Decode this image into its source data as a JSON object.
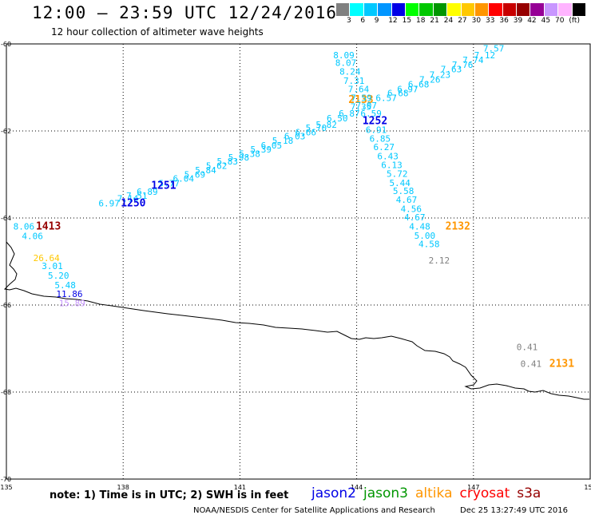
{
  "header": {
    "title": "12:00 – 23:59 UTC 12/24/2016",
    "subtitle": "12 hour collection of altimeter wave heights"
  },
  "color_scale": {
    "colors": [
      "#808080",
      "#00ffff",
      "#00c8ff",
      "#0096ff",
      "#0000e6",
      "#00ff00",
      "#00c800",
      "#009600",
      "#ffff00",
      "#ffc800",
      "#ff9600",
      "#ff0000",
      "#c80000",
      "#960000",
      "#960096",
      "#c896ff",
      "#ffb4ff",
      "#000000"
    ],
    "labels": [
      "3",
      "6",
      "9",
      "12",
      "15",
      "18",
      "21",
      "24",
      "27",
      "30",
      "33",
      "36",
      "39",
      "42",
      "45",
      "70",
      "(ft)"
    ]
  },
  "map": {
    "lon_ticks": [
      "135",
      "138",
      "141",
      "144",
      "147",
      "150"
    ],
    "lat_ticks": [
      "-60",
      "-62",
      "-64",
      "-66",
      "-68",
      "-70"
    ],
    "ticks": [
      {
        "lon": 147.52,
        "lat": -60.1,
        "text": "7.57",
        "color": "#00c8ff"
      },
      {
        "lon": 147.29,
        "lat": -60.26,
        "text": "7.12",
        "color": "#00c8ff"
      },
      {
        "lon": 146.99,
        "lat": -60.37,
        "text": "7.74",
        "color": "#00c8ff"
      },
      {
        "lon": 146.72,
        "lat": -60.48,
        "text": "7.76",
        "color": "#00c8ff"
      },
      {
        "lon": 146.43,
        "lat": -60.58,
        "text": "7.63",
        "color": "#00c8ff"
      },
      {
        "lon": 146.14,
        "lat": -60.71,
        "text": "7.23",
        "color": "#00c8ff"
      },
      {
        "lon": 145.88,
        "lat": -60.82,
        "text": "7.26",
        "color": "#00c8ff"
      },
      {
        "lon": 145.59,
        "lat": -60.93,
        "text": "6.68",
        "color": "#00c8ff"
      },
      {
        "lon": 145.31,
        "lat": -61.04,
        "text": "6.97",
        "color": "#00c8ff"
      },
      {
        "lon": 145.06,
        "lat": -61.13,
        "text": "6.68",
        "color": "#00c8ff"
      },
      {
        "lon": 144.76,
        "lat": -61.24,
        "text": "6.57",
        "color": "#00c8ff"
      },
      {
        "lon": 144.11,
        "lat": -61.28,
        "text": "2133",
        "color": "#ff9600",
        "bold": true
      },
      {
        "lon": 144.11,
        "lat": -61.44,
        "text": "7.35",
        "color": "#00c8ff"
      },
      {
        "lon": 143.81,
        "lat": -61.6,
        "text": "6.87",
        "color": "#00c8ff"
      },
      {
        "lon": 143.5,
        "lat": -61.71,
        "text": "6.50",
        "color": "#00c8ff"
      },
      {
        "lon": 143.22,
        "lat": -61.85,
        "text": "5.82",
        "color": "#00c8ff"
      },
      {
        "lon": 142.96,
        "lat": -61.93,
        "text": "5.70",
        "color": "#00c8ff"
      },
      {
        "lon": 142.69,
        "lat": -62.03,
        "text": "6.66",
        "color": "#00c8ff"
      },
      {
        "lon": 142.41,
        "lat": -62.12,
        "text": "6.03",
        "color": "#00c8ff"
      },
      {
        "lon": 142.1,
        "lat": -62.22,
        "text": "5.18",
        "color": "#00c8ff"
      },
      {
        "lon": 141.81,
        "lat": -62.33,
        "text": "6.05",
        "color": "#00c8ff"
      },
      {
        "lon": 141.54,
        "lat": -62.42,
        "text": "5.39",
        "color": "#00c8ff"
      },
      {
        "lon": 141.25,
        "lat": -62.52,
        "text": "5.38",
        "color": "#00c8ff"
      },
      {
        "lon": 140.97,
        "lat": -62.61,
        "text": "5.98",
        "color": "#00c8ff"
      },
      {
        "lon": 140.68,
        "lat": -62.7,
        "text": "5.83",
        "color": "#00c8ff"
      },
      {
        "lon": 140.4,
        "lat": -62.8,
        "text": "5.62",
        "color": "#00c8ff"
      },
      {
        "lon": 140.12,
        "lat": -62.9,
        "text": "5.84",
        "color": "#00c8ff"
      },
      {
        "lon": 139.84,
        "lat": -63.0,
        "text": "5.69",
        "color": "#00c8ff"
      },
      {
        "lon": 139.55,
        "lat": -63.09,
        "text": "6.04",
        "color": "#00c8ff"
      },
      {
        "lon": 139.18,
        "lat": -63.2,
        "text": "5.77",
        "color": "#00c8ff"
      },
      {
        "lon": 139.04,
        "lat": -63.26,
        "text": "1251",
        "color": "#0000e6",
        "bold": true
      },
      {
        "lon": 138.62,
        "lat": -63.39,
        "text": "6.89",
        "color": "#00c8ff"
      },
      {
        "lon": 138.35,
        "lat": -63.49,
        "text": "7.51",
        "color": "#00c8ff"
      },
      {
        "lon": 138.12,
        "lat": -63.55,
        "text": "7.14",
        "color": "#00c8ff"
      },
      {
        "lon": 137.64,
        "lat": -63.66,
        "text": "6.97",
        "color": "#00c8ff"
      },
      {
        "lon": 138.26,
        "lat": -63.66,
        "text": "1250",
        "color": "#0000e6",
        "bold": true
      },
      {
        "lon": 143.67,
        "lat": -60.26,
        "text": "8.09",
        "color": "#00c8ff"
      },
      {
        "lon": 143.72,
        "lat": -60.43,
        "text": "8.07",
        "color": "#00c8ff"
      },
      {
        "lon": 143.83,
        "lat": -60.63,
        "text": "8.24",
        "color": "#00c8ff"
      },
      {
        "lon": 143.93,
        "lat": -60.84,
        "text": "7.31",
        "color": "#00c8ff"
      },
      {
        "lon": 144.05,
        "lat": -61.04,
        "text": "7.64",
        "color": "#00c8ff"
      },
      {
        "lon": 144.12,
        "lat": -61.24,
        "text": "7.59",
        "color": "#00c8ff"
      },
      {
        "lon": 144.25,
        "lat": -61.41,
        "text": "7.07",
        "color": "#00c8ff"
      },
      {
        "lon": 144.37,
        "lat": -61.6,
        "text": "6.59",
        "color": "#00c8ff"
      },
      {
        "lon": 144.47,
        "lat": -61.77,
        "text": "1252",
        "color": "#0000e6",
        "bold": true
      },
      {
        "lon": 144.5,
        "lat": -61.97,
        "text": "6.91",
        "color": "#00c8ff"
      },
      {
        "lon": 144.6,
        "lat": -62.17,
        "text": "6.85",
        "color": "#00c8ff"
      },
      {
        "lon": 144.7,
        "lat": -62.37,
        "text": "6.27",
        "color": "#00c8ff"
      },
      {
        "lon": 144.8,
        "lat": -62.58,
        "text": "6.43",
        "color": "#00c8ff"
      },
      {
        "lon": 144.9,
        "lat": -62.78,
        "text": "6.13",
        "color": "#00c8ff"
      },
      {
        "lon": 145.04,
        "lat": -62.98,
        "text": "5.72",
        "color": "#00c8ff"
      },
      {
        "lon": 145.11,
        "lat": -63.19,
        "text": "5.44",
        "color": "#00c8ff"
      },
      {
        "lon": 145.2,
        "lat": -63.38,
        "text": "5.58",
        "color": "#00c8ff"
      },
      {
        "lon": 145.28,
        "lat": -63.58,
        "text": "4.67",
        "color": "#00c8ff"
      },
      {
        "lon": 145.4,
        "lat": -63.79,
        "text": "4.56",
        "color": "#00c8ff"
      },
      {
        "lon": 145.49,
        "lat": -63.98,
        "text": "4.67",
        "color": "#00c8ff"
      },
      {
        "lon": 145.62,
        "lat": -64.19,
        "text": "4.48",
        "color": "#00c8ff"
      },
      {
        "lon": 146.6,
        "lat": -64.19,
        "text": "2132",
        "color": "#ff9600",
        "bold": true
      },
      {
        "lon": 145.75,
        "lat": -64.4,
        "text": "5.00",
        "color": "#00c8ff"
      },
      {
        "lon": 145.86,
        "lat": -64.6,
        "text": "4.58",
        "color": "#00c8ff"
      },
      {
        "lon": 146.12,
        "lat": -64.97,
        "text": "2.12",
        "color": "#808080"
      },
      {
        "lon": 135.45,
        "lat": -64.19,
        "text": "8.06",
        "color": "#00c8ff"
      },
      {
        "lon": 136.08,
        "lat": -64.19,
        "text": "1413",
        "color": "#960000",
        "bold": true
      },
      {
        "lon": 135.67,
        "lat": -64.41,
        "text": "4.06",
        "color": "#00c8ff"
      },
      {
        "lon": 136.03,
        "lat": -64.92,
        "text": "26.64",
        "color": "#ffc800"
      },
      {
        "lon": 136.18,
        "lat": -65.1,
        "text": "3.01",
        "color": "#00c8ff"
      },
      {
        "lon": 136.34,
        "lat": -65.32,
        "text": "5.20",
        "color": "#00c8ff"
      },
      {
        "lon": 136.51,
        "lat": -65.54,
        "text": "5.48",
        "color": "#00c8ff"
      },
      {
        "lon": 136.62,
        "lat": -65.74,
        "text": "11.86",
        "color": "#0000e6"
      },
      {
        "lon": 136.69,
        "lat": -65.95,
        "text": "15.89",
        "color": "#c896ff"
      },
      {
        "lon": 148.38,
        "lat": -66.96,
        "text": "0.41",
        "color": "#808080"
      },
      {
        "lon": 148.48,
        "lat": -67.35,
        "text": "0.41",
        "color": "#808080"
      },
      {
        "lon": 149.27,
        "lat": -67.35,
        "text": "2131",
        "color": "#ff9600",
        "bold": true
      }
    ]
  },
  "footer": {
    "note": "note: 1) Time is in UTC; 2) SWH is in feet",
    "satellites": [
      {
        "name": "jason2",
        "color": "#0000e6"
      },
      {
        "name": "jason3",
        "color": "#009600"
      },
      {
        "name": "altika",
        "color": "#ff9600"
      },
      {
        "name": "cryosat",
        "color": "#ff0000"
      },
      {
        "name": "s3a",
        "color": "#960000"
      }
    ],
    "credit": "NOAA/NESDIS Center for Satellite Applications and Research",
    "timestamp": "Dec 25 13:27:49 UTC 2016"
  }
}
